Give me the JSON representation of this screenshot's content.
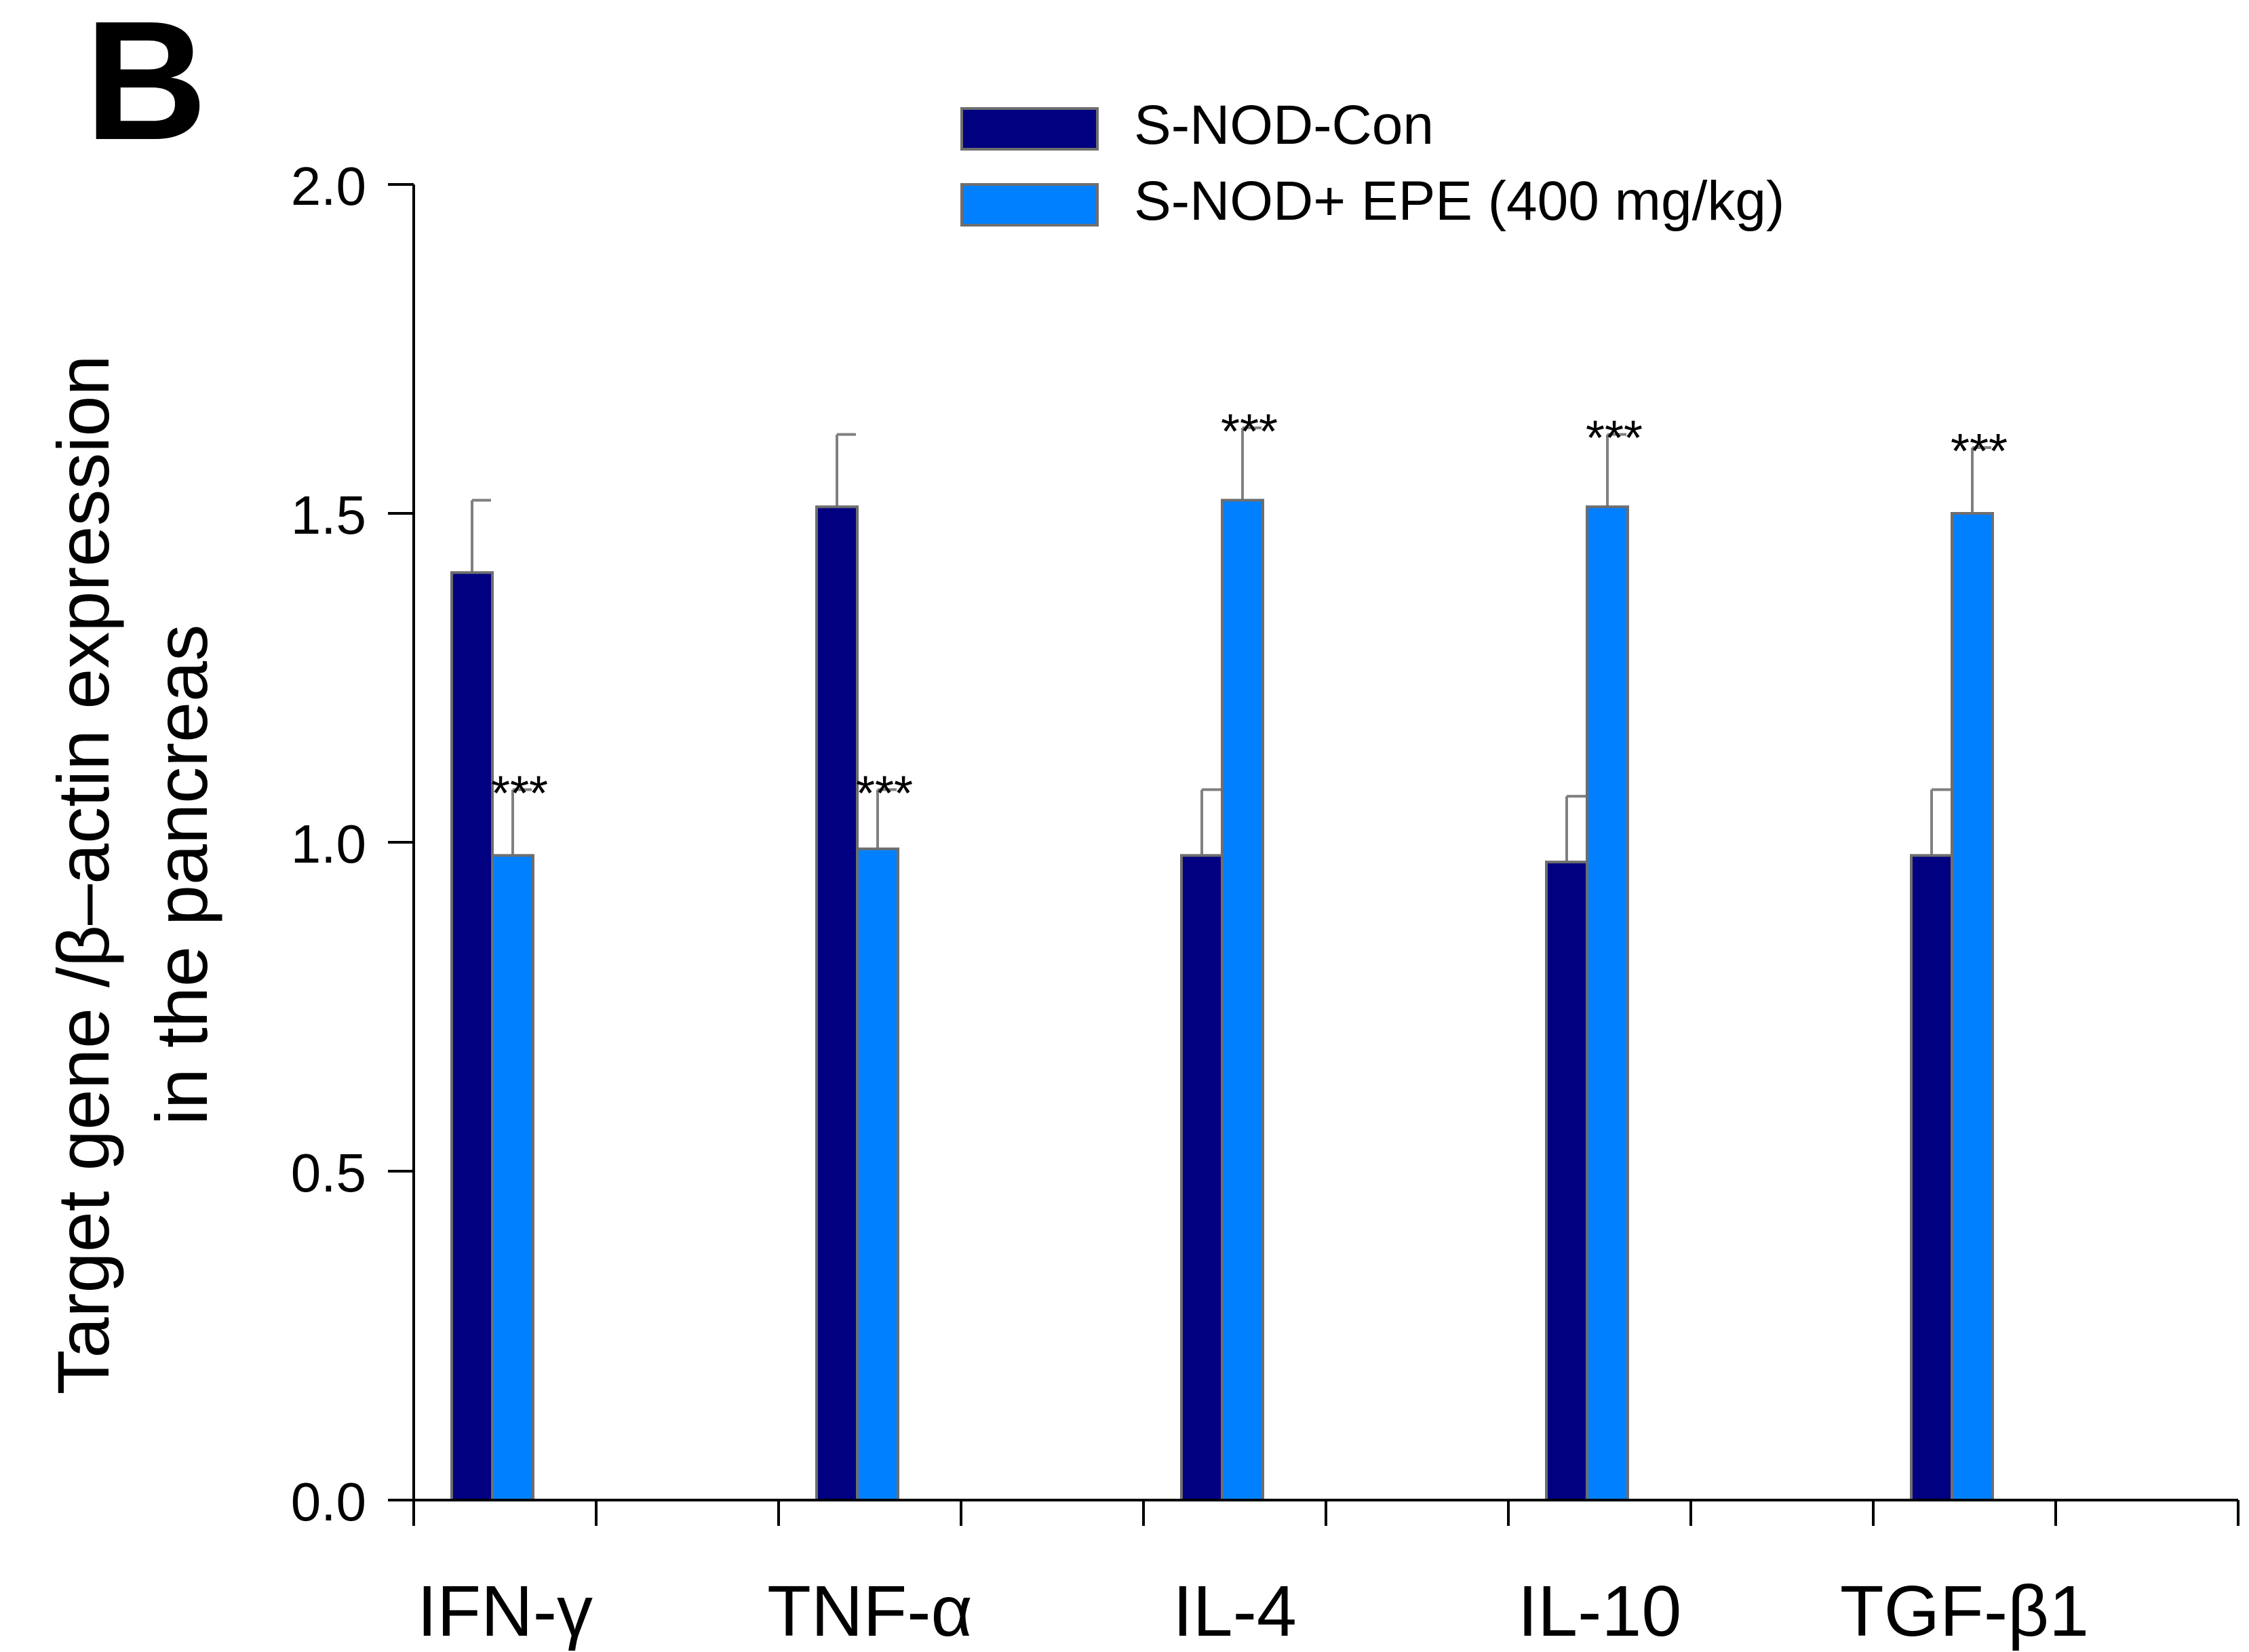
{
  "panel_label": "B",
  "chart_data": {
    "type": "bar",
    "title": "",
    "xlabel": "",
    "ylabel_lines": [
      "Target gene /β–actin expression",
      "in the pancreas"
    ],
    "ylim": [
      0,
      2.0
    ],
    "yticks": [
      "0.0",
      "0.5",
      "1.0",
      "1.5",
      "2.0"
    ],
    "ytick_values": [
      0,
      0.5,
      1.0,
      1.5,
      2.0
    ],
    "categories": [
      "IFN-γ",
      "TNF-α",
      "IL-4",
      "IL-10",
      "TGF-β1"
    ],
    "series": [
      {
        "name": "S-NOD-Con",
        "color": "#000080",
        "values": [
          1.41,
          1.51,
          0.98,
          0.97,
          0.98
        ],
        "errors": [
          0.11,
          0.11,
          0.1,
          0.1,
          0.1
        ]
      },
      {
        "name": "S-NOD+ EPE (400 mg/kg)",
        "color": "#0080ff",
        "values": [
          0.98,
          0.99,
          1.52,
          1.51,
          1.5
        ],
        "errors": [
          0.1,
          0.09,
          0.11,
          0.11,
          0.1
        ]
      }
    ],
    "significance": [
      {
        "series": 1,
        "category": 0,
        "label": "***"
      },
      {
        "series": 1,
        "category": 1,
        "label": "***"
      },
      {
        "series": 1,
        "category": 2,
        "label": "***"
      },
      {
        "series": 1,
        "category": 3,
        "label": "***"
      },
      {
        "series": 1,
        "category": 4,
        "label": "***"
      }
    ],
    "legend_position": "top-center",
    "grid": false
  }
}
